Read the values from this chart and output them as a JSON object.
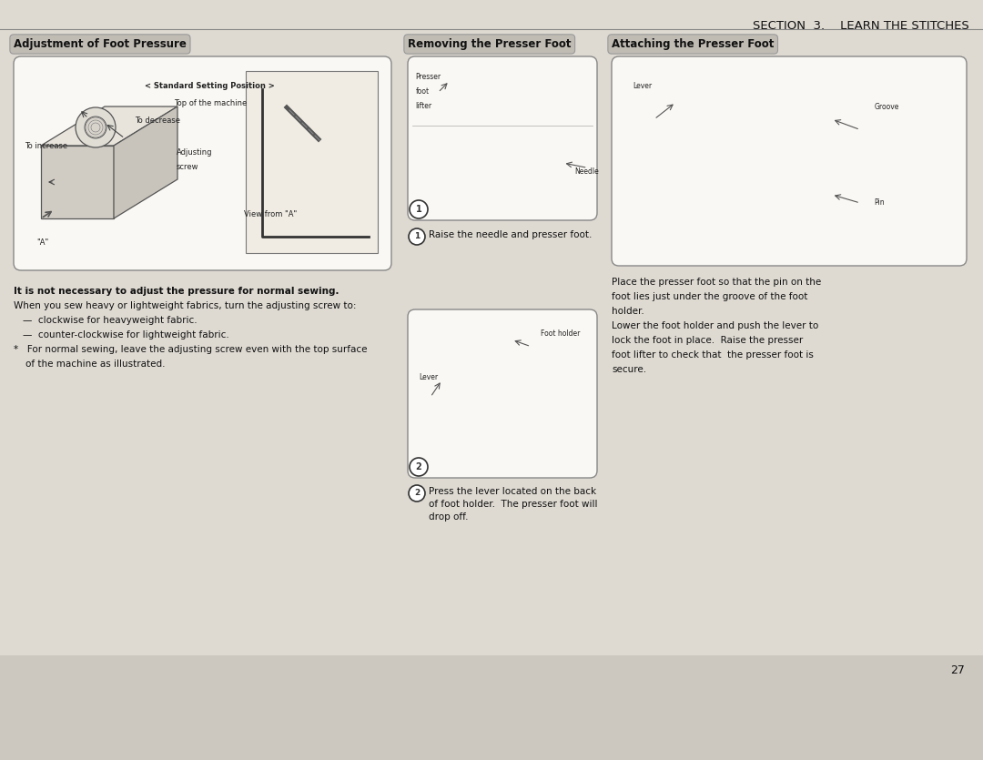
{
  "page_bg": "#ccc8c0",
  "content_bg": "#e8e4dc",
  "section_header": "SECTION  3.    LEARN THE STITCHES",
  "section_header_fontsize": 9.5,
  "col1_title": "Adjustment of Foot Pressure",
  "col2_title": "Removing the Presser Foot",
  "col3_title": "Attaching the Presser Foot",
  "title_fontsize": 8.5,
  "title_bg": "#c0bcb4",
  "title_text_color": "#111111",
  "box_edge_color": "#888880",
  "box_fill": "#faf8f4",
  "page_num": "27",
  "col1_body_texts": [
    {
      "text": "It is not necessary to adjust the pressure for normal sewing.",
      "bold": true,
      "size": 7.5
    },
    {
      "text": "When you sew heavy or lightweight fabrics, turn the adjusting screw to:",
      "bold": false,
      "size": 7.5
    },
    {
      "text": "—  clockwise for heavyweight fabric.",
      "bold": false,
      "size": 7.5,
      "indent": true
    },
    {
      "text": "—  counter-clockwise for lightweight fabric.",
      "bold": false,
      "size": 7.5,
      "indent": true
    },
    {
      "text": "*   For normal sewing, leave the adjusting screw even with the top surface",
      "bold": false,
      "size": 7.5,
      "star": true
    },
    {
      "text": "    of the machine as illustrated.",
      "bold": false,
      "size": 7.5,
      "star": true
    }
  ],
  "diagram1_inner_annotations": [
    {
      "relx": 0.52,
      "rely": 0.88,
      "text": "< Standard Setting Position >",
      "size": 6.0,
      "bold": true,
      "ha": "center"
    },
    {
      "relx": 0.52,
      "rely": 0.8,
      "text": "Top of the machine",
      "size": 6.0,
      "bold": false,
      "ha": "center"
    },
    {
      "relx": 0.32,
      "rely": 0.72,
      "text": "To decrease",
      "size": 6.0,
      "bold": false,
      "ha": "left"
    },
    {
      "relx": 0.03,
      "rely": 0.6,
      "text": "To increase",
      "size": 6.0,
      "bold": false,
      "ha": "left"
    },
    {
      "relx": 0.43,
      "rely": 0.57,
      "text": "Adjusting",
      "size": 6.0,
      "bold": false,
      "ha": "left"
    },
    {
      "relx": 0.43,
      "rely": 0.5,
      "text": "screw",
      "size": 6.0,
      "bold": false,
      "ha": "left"
    },
    {
      "relx": 0.06,
      "rely": 0.15,
      "text": "\"A\"",
      "size": 6.0,
      "bold": false,
      "ha": "left"
    },
    {
      "relx": 0.68,
      "rely": 0.28,
      "text": "View from \"A\"",
      "size": 6.0,
      "bold": false,
      "ha": "center"
    }
  ],
  "diagram2_inner_annotations": [
    {
      "relx": 0.04,
      "rely": 0.9,
      "text": "Presser",
      "size": 5.5,
      "ha": "left"
    },
    {
      "relx": 0.04,
      "rely": 0.81,
      "text": "foot",
      "size": 5.5,
      "ha": "left"
    },
    {
      "relx": 0.04,
      "rely": 0.72,
      "text": "lifter",
      "size": 5.5,
      "ha": "left"
    },
    {
      "relx": 0.88,
      "rely": 0.32,
      "text": "Needle",
      "size": 5.5,
      "ha": "left"
    }
  ],
  "diagram3_inner_annotations": [
    {
      "relx": 0.06,
      "rely": 0.62,
      "text": "Lever",
      "size": 5.5,
      "ha": "left"
    },
    {
      "relx": 0.7,
      "rely": 0.88,
      "text": "Foot holder",
      "size": 5.5,
      "ha": "left"
    }
  ],
  "diagram4_inner_annotations": [
    {
      "relx": 0.06,
      "rely": 0.88,
      "text": "Lever",
      "size": 5.5,
      "ha": "left"
    },
    {
      "relx": 0.74,
      "rely": 0.78,
      "text": "Groove",
      "size": 5.5,
      "ha": "left"
    },
    {
      "relx": 0.74,
      "rely": 0.32,
      "text": "Pin",
      "size": 5.5,
      "ha": "left"
    }
  ],
  "col2_step1_text": "Raise the needle and presser foot.",
  "col2_step2_text": "Press the lever located on the back\nof foot holder.  The presser foot will\ndrop off.",
  "col3_body_text": "Place the presser foot so that the pin on the\nfoot lies just under the groove of the foot\nholder.\nLower the foot holder and push the lever to\nlock the foot in place.  Raise the presser\nfoot lifter to check that  the presser foot is\nsecure."
}
